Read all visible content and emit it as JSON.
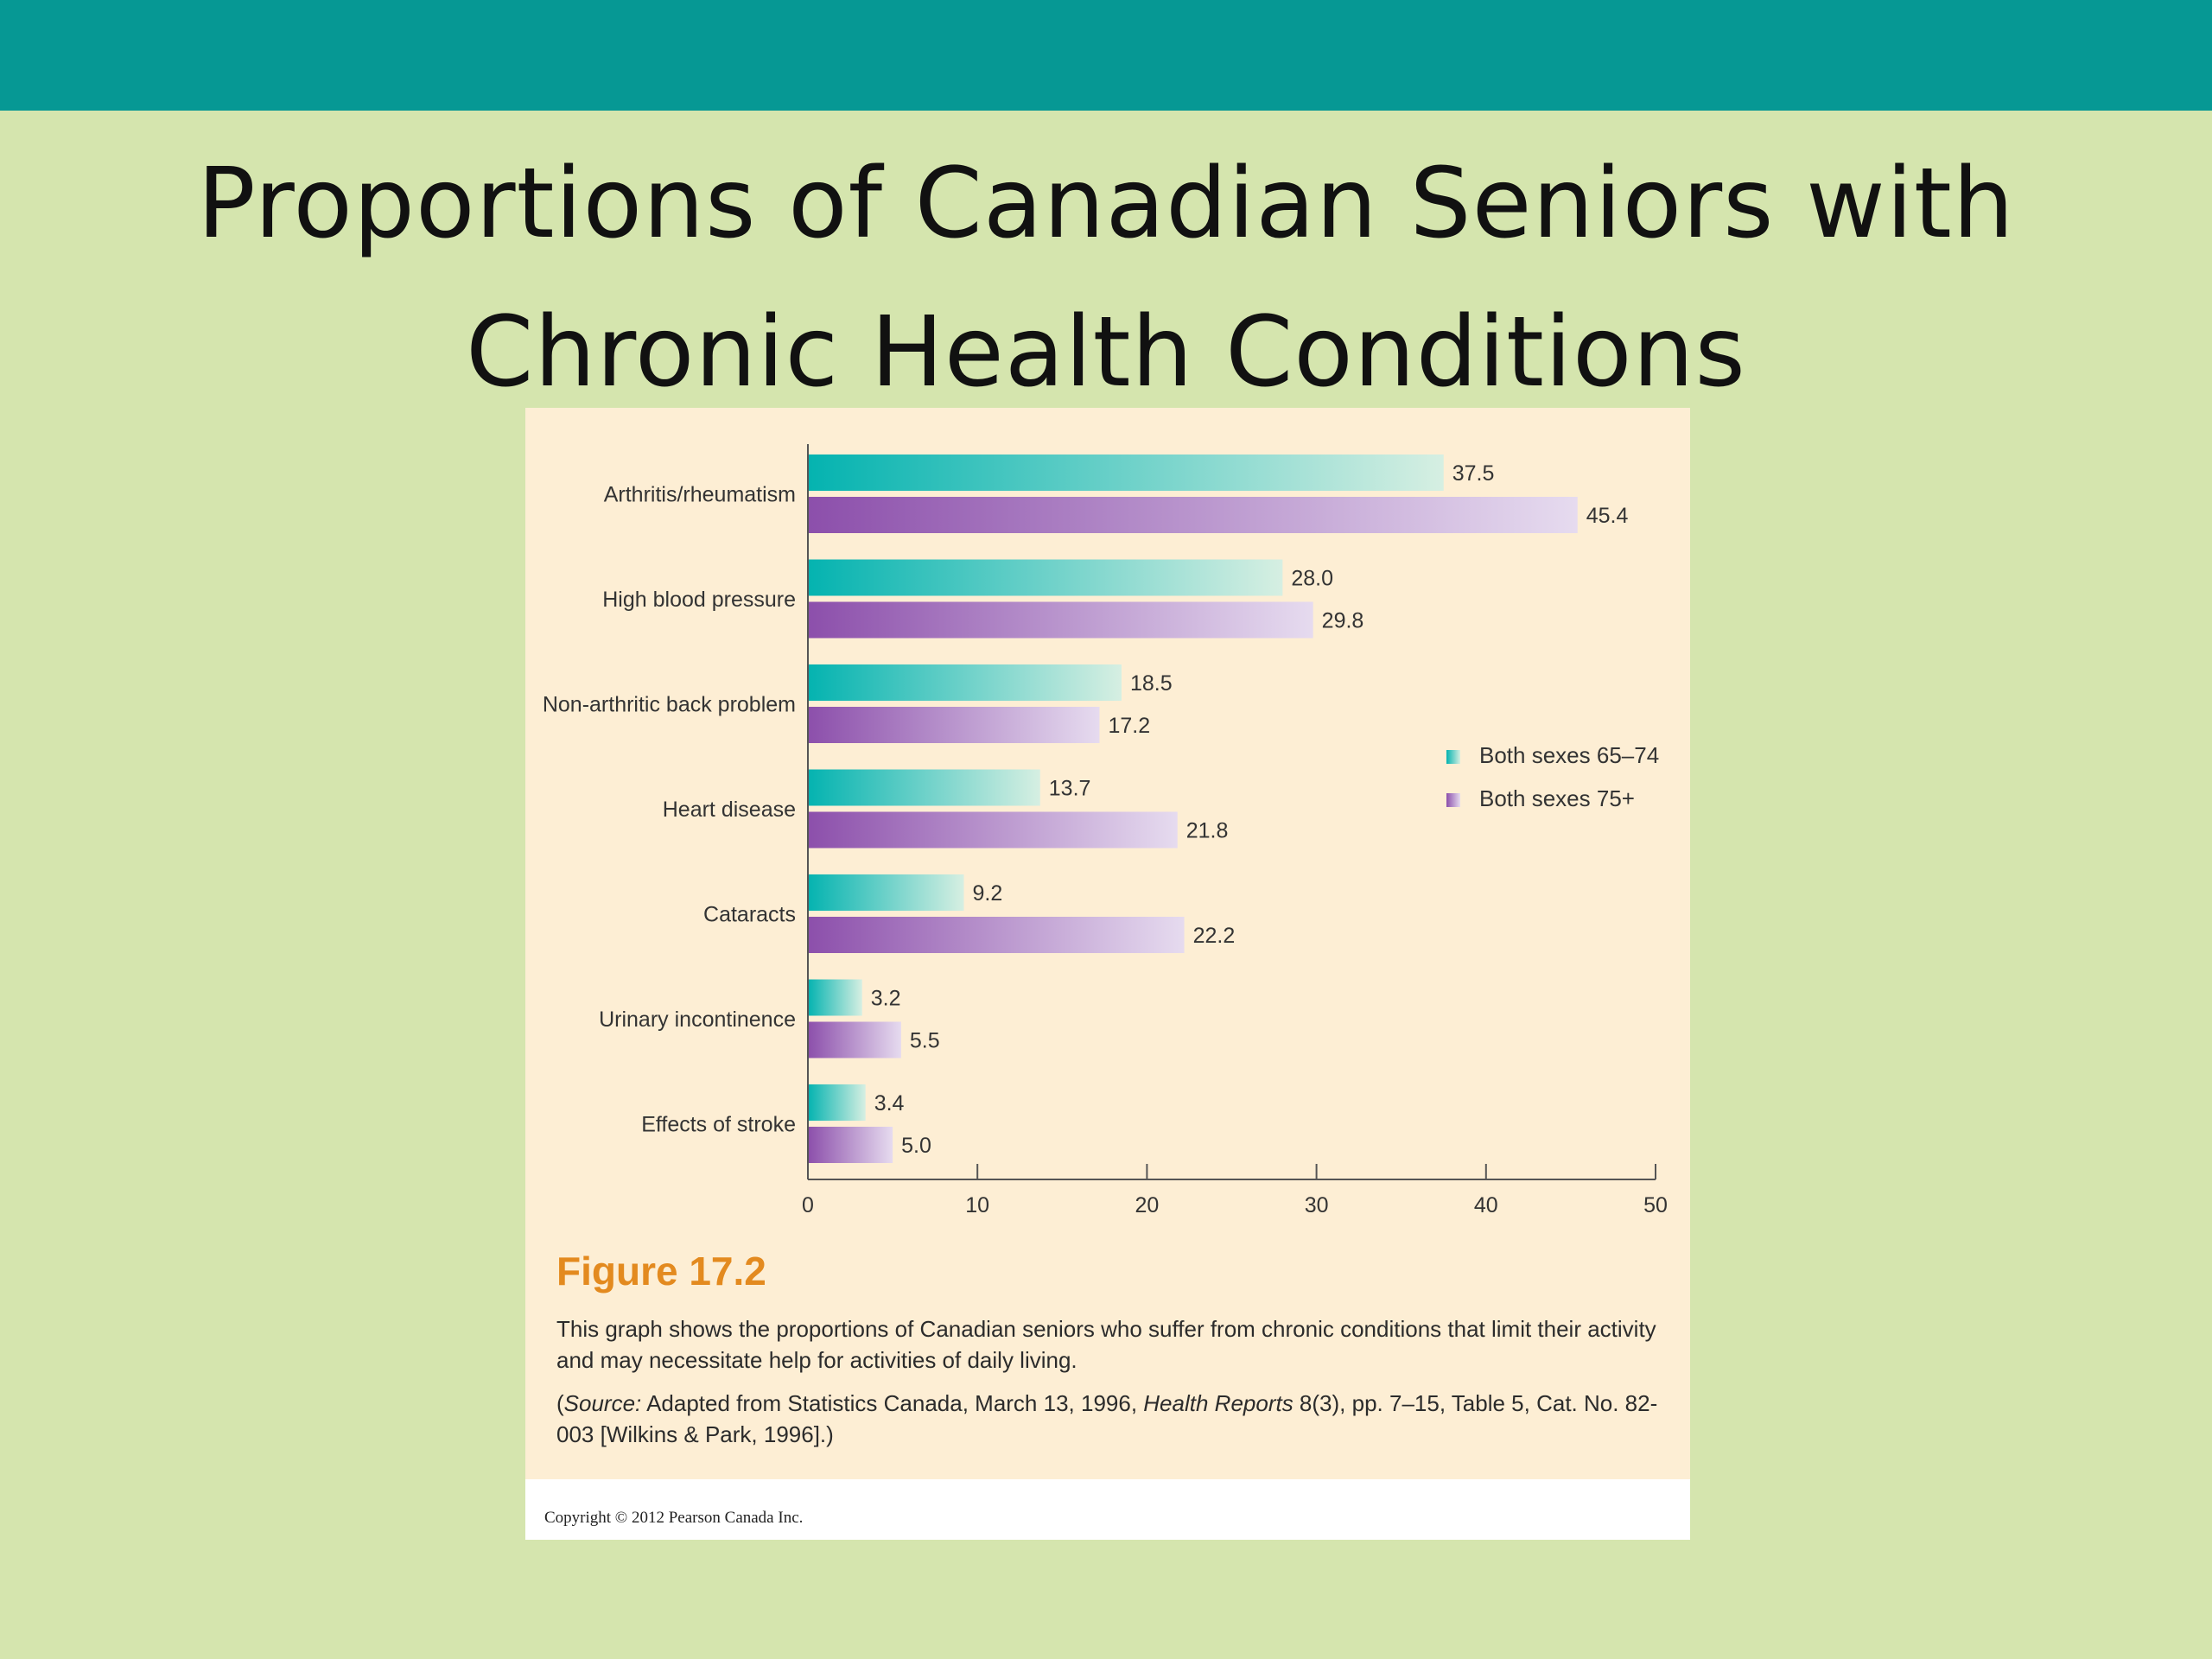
{
  "slide": {
    "title": "Proportions of Canadian Seniors with Chronic Health Conditions"
  },
  "colors": {
    "band": "#069894",
    "background": "#d5e5ae",
    "card": "#fdeed4",
    "series_65_74": "#04b3b0",
    "series_75_plus": "#8c4fab",
    "figure_label": "#e38a1f"
  },
  "figure": {
    "label": "Figure 17.2",
    "caption": "This graph shows the proportions of Canadian seniors who suffer from chronic conditions that limit their activity and may necessitate help for activities of daily living.",
    "source": {
      "open": "(",
      "source_word": "Source:",
      "text1": " Adapted from Statistics Canada, March 13, 1996, ",
      "journal": "Health Reports",
      "text2": " 8(3), pp. 7–15, Table 5, Cat. No. 82-003 [Wilkins & Park, 1996].)"
    },
    "copyright": "Copyright © 2012 Pearson Canada Inc."
  },
  "chart_data": {
    "type": "bar",
    "orientation": "horizontal",
    "categories": [
      "Arthritis/rheumatism",
      "High blood pressure",
      "Non-arthritic back problem",
      "Heart disease",
      "Cataracts",
      "Urinary incontinence",
      "Effects of stroke"
    ],
    "series": [
      {
        "name": "Both sexes 65–74",
        "values": [
          37.5,
          28.0,
          18.5,
          13.7,
          9.2,
          3.2,
          3.4
        ],
        "labels": [
          "37.5",
          "28.0",
          "18.5",
          "13.7",
          "9.2",
          "3.2",
          "3.4"
        ]
      },
      {
        "name": "Both sexes 75+",
        "values": [
          45.4,
          29.8,
          17.2,
          21.8,
          22.2,
          5.5,
          5.0
        ],
        "labels": [
          "45.4",
          "29.8",
          "17.2",
          "21.8",
          "22.2",
          "5.5",
          "5.0"
        ]
      }
    ],
    "xlim": [
      0,
      50
    ],
    "xticks": [
      "0",
      "10",
      "20",
      "30",
      "40",
      "50"
    ],
    "grid": false,
    "legend_position": "right"
  }
}
